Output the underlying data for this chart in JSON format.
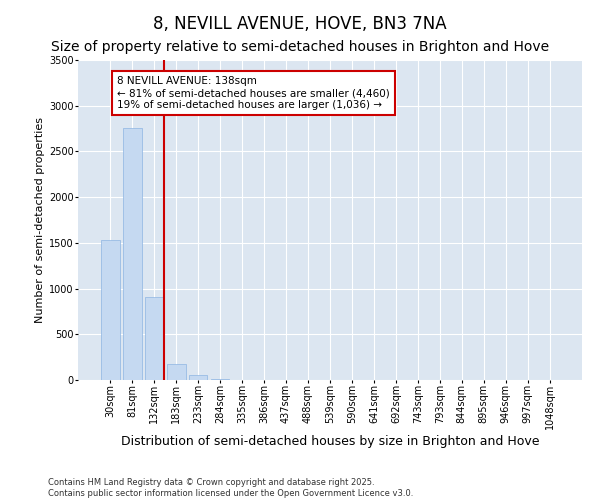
{
  "title": "8, NEVILL AVENUE, HOVE, BN3 7NA",
  "subtitle": "Size of property relative to semi-detached houses in Brighton and Hove",
  "xlabel": "Distribution of semi-detached houses by size in Brighton and Hove",
  "ylabel": "Number of semi-detached properties",
  "categories": [
    "30sqm",
    "81sqm",
    "132sqm",
    "183sqm",
    "233sqm",
    "284sqm",
    "335sqm",
    "386sqm",
    "437sqm",
    "488sqm",
    "539sqm",
    "590sqm",
    "641sqm",
    "692sqm",
    "743sqm",
    "793sqm",
    "844sqm",
    "895sqm",
    "946sqm",
    "997sqm",
    "1048sqm"
  ],
  "values": [
    1530,
    2760,
    910,
    170,
    50,
    10,
    0,
    0,
    0,
    0,
    0,
    0,
    0,
    0,
    0,
    0,
    0,
    0,
    0,
    0,
    0
  ],
  "bar_color": "#c5d9f1",
  "bar_edge_color": "#8db4e2",
  "highlight_line_color": "#cc0000",
  "annotation_title": "8 NEVILL AVENUE: 138sqm",
  "annotation_line1": "← 81% of semi-detached houses are smaller (4,460)",
  "annotation_line2": "19% of semi-detached houses are larger (1,036) →",
  "annotation_box_color": "#cc0000",
  "ylim": [
    0,
    3500
  ],
  "yticks": [
    0,
    500,
    1000,
    1500,
    2000,
    2500,
    3000,
    3500
  ],
  "footnote1": "Contains HM Land Registry data © Crown copyright and database right 2025.",
  "footnote2": "Contains public sector information licensed under the Open Government Licence v3.0.",
  "background_color": "#ffffff",
  "plot_bg_color": "#dce6f1",
  "grid_color": "#ffffff",
  "title_fontsize": 12,
  "subtitle_fontsize": 10,
  "xlabel_fontsize": 9,
  "ylabel_fontsize": 8,
  "tick_fontsize": 7,
  "footnote_fontsize": 6,
  "annotation_fontsize": 7.5
}
